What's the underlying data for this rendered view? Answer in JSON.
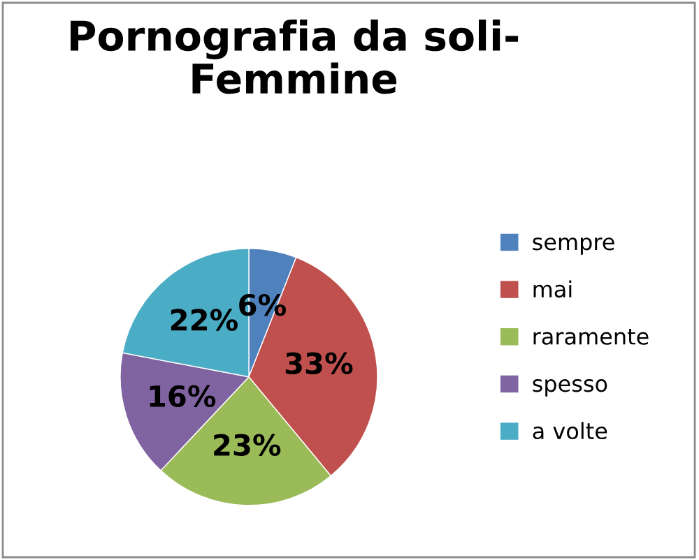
{
  "chart_data": {
    "type": "pie",
    "title": "Pornografia da soli-\nFemmine",
    "categories": [
      "sempre",
      "mai",
      "raramente",
      "spesso",
      "a volte"
    ],
    "values": [
      6,
      33,
      23,
      16,
      22
    ],
    "colors": [
      "#4f81bd",
      "#c0504d",
      "#9bbb59",
      "#8064a2",
      "#4bacc6"
    ],
    "value_labels": [
      "6%",
      "33%",
      "23%",
      "16%",
      "22%"
    ],
    "legend": "right"
  }
}
